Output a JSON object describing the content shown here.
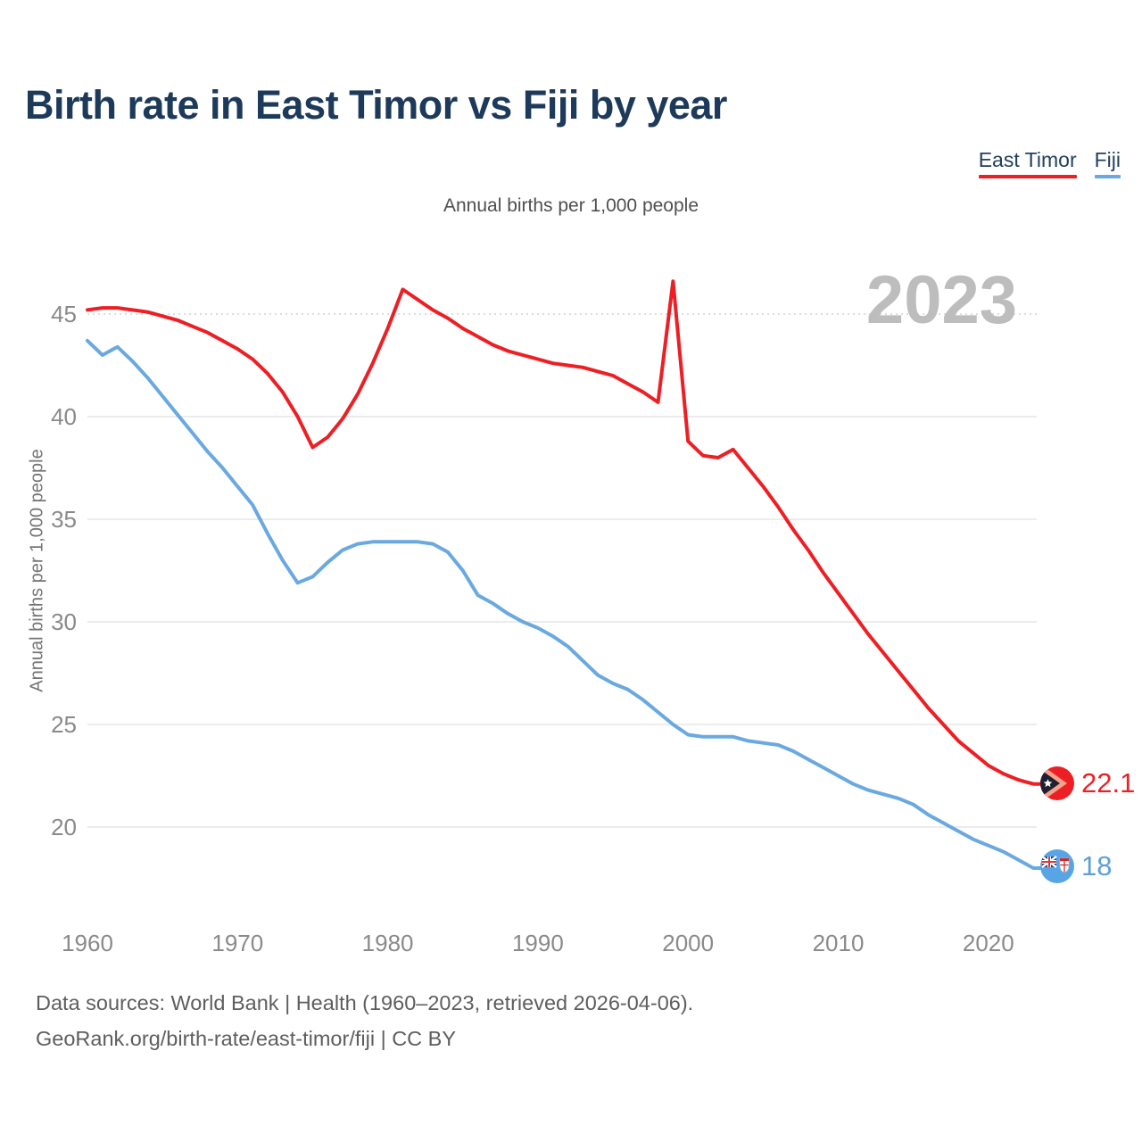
{
  "title": "Birth rate in East Timor vs Fiji by year",
  "subtitle": "Annual births per 1,000 people",
  "y_axis_title": "Annual births per 1,000 people",
  "watermark": "2023",
  "legend": [
    {
      "label": "East Timor",
      "color": "#ed1f24"
    },
    {
      "label": "Fiji",
      "color": "#6aa9e0"
    }
  ],
  "end_labels": [
    {
      "series": "East Timor",
      "value": "22.1",
      "flag": "east-timor-flag"
    },
    {
      "series": "Fiji",
      "value": "18",
      "flag": "fiji-flag"
    }
  ],
  "footer": {
    "line1": "Data sources: World Bank | Health (1960–2023, retrieved 2026-04-06).",
    "line2": "GeoRank.org/birth-rate/east-timor/fiji | CC BY"
  },
  "chart_data": {
    "type": "line",
    "title": "Birth rate in East Timor vs Fiji by year",
    "ylabel": "Annual births per 1,000 people",
    "x_ticks": [
      1960,
      1970,
      1980,
      1990,
      2000,
      2010,
      2020
    ],
    "y_ticks": [
      45,
      40,
      35,
      30,
      25,
      20
    ],
    "xlim": [
      1960,
      2023
    ],
    "ylim": [
      18,
      47
    ],
    "grid": true,
    "legend_position": "top-right",
    "years": [
      1960,
      1961,
      1962,
      1963,
      1964,
      1965,
      1966,
      1967,
      1968,
      1969,
      1970,
      1971,
      1972,
      1973,
      1974,
      1975,
      1976,
      1977,
      1978,
      1979,
      1980,
      1981,
      1982,
      1983,
      1984,
      1985,
      1986,
      1987,
      1988,
      1989,
      1990,
      1991,
      1992,
      1993,
      1994,
      1995,
      1996,
      1997,
      1998,
      1999,
      2000,
      2001,
      2002,
      2003,
      2004,
      2005,
      2006,
      2007,
      2008,
      2009,
      2010,
      2011,
      2012,
      2013,
      2014,
      2015,
      2016,
      2017,
      2018,
      2019,
      2020,
      2021,
      2022,
      2023
    ],
    "series": [
      {
        "name": "East Timor",
        "color": "#ed1f24",
        "values": [
          45.2,
          45.3,
          45.3,
          45.2,
          45.1,
          44.9,
          44.7,
          44.4,
          44.1,
          43.7,
          43.3,
          42.8,
          42.1,
          41.2,
          40.0,
          38.5,
          39.0,
          39.9,
          41.1,
          42.6,
          44.3,
          46.2,
          45.7,
          45.2,
          44.8,
          44.3,
          43.9,
          43.5,
          43.2,
          43.0,
          42.8,
          42.6,
          42.5,
          42.4,
          42.2,
          42.0,
          41.6,
          41.2,
          40.7,
          46.6,
          38.8,
          38.1,
          38.0,
          38.4,
          37.5,
          36.6,
          35.6,
          34.5,
          33.5,
          32.4,
          31.4,
          30.4,
          29.4,
          28.5,
          27.6,
          26.7,
          25.8,
          25.0,
          24.2,
          23.6,
          23.0,
          22.6,
          22.3,
          22.1
        ]
      },
      {
        "name": "Fiji",
        "color": "#6aa9e0",
        "values": [
          43.7,
          43.0,
          43.4,
          42.7,
          41.9,
          41.0,
          40.1,
          39.2,
          38.3,
          37.5,
          36.6,
          35.7,
          34.3,
          33.0,
          31.9,
          32.2,
          32.9,
          33.5,
          33.8,
          33.9,
          33.9,
          33.9,
          33.9,
          33.8,
          33.4,
          32.5,
          31.3,
          30.9,
          30.4,
          30.0,
          29.7,
          29.3,
          28.8,
          28.1,
          27.4,
          27.0,
          26.7,
          26.2,
          25.6,
          25.0,
          24.5,
          24.4,
          24.4,
          24.4,
          24.2,
          24.1,
          24.0,
          23.7,
          23.3,
          22.9,
          22.5,
          22.1,
          21.8,
          21.6,
          21.4,
          21.1,
          20.6,
          20.2,
          19.8,
          19.4,
          19.1,
          18.8,
          18.4,
          18.0
        ]
      }
    ]
  }
}
